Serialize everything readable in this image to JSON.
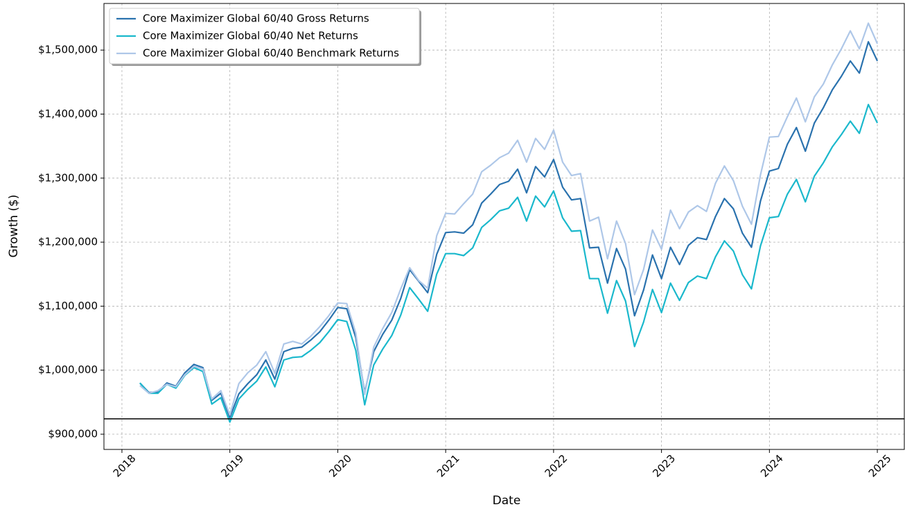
{
  "chart_data": {
    "type": "line",
    "xlabel": "Date",
    "ylabel": "Growth ($)",
    "x": [
      "2018-02",
      "2018-03",
      "2018-04",
      "2018-05",
      "2018-06",
      "2018-07",
      "2018-08",
      "2018-09",
      "2018-10",
      "2018-11",
      "2018-12",
      "2019-01",
      "2019-02",
      "2019-03",
      "2019-04",
      "2019-05",
      "2019-06",
      "2019-07",
      "2019-08",
      "2019-09",
      "2019-10",
      "2019-11",
      "2019-12",
      "2020-01",
      "2020-02",
      "2020-03",
      "2020-04",
      "2020-05",
      "2020-06",
      "2020-07",
      "2020-08",
      "2020-09",
      "2020-10",
      "2020-11",
      "2020-12",
      "2021-01",
      "2021-02",
      "2021-03",
      "2021-04",
      "2021-05",
      "2021-06",
      "2021-07",
      "2021-08",
      "2021-09",
      "2021-10",
      "2021-11",
      "2021-12",
      "2022-01",
      "2022-02",
      "2022-03",
      "2022-04",
      "2022-05",
      "2022-06",
      "2022-07",
      "2022-08",
      "2022-09",
      "2022-10",
      "2022-11",
      "2022-12",
      "2023-01",
      "2023-02",
      "2023-03",
      "2023-04",
      "2023-05",
      "2023-06",
      "2023-07",
      "2023-08",
      "2023-09",
      "2023-10",
      "2023-11",
      "2023-12",
      "2024-01",
      "2024-02",
      "2024-03",
      "2024-04",
      "2024-05",
      "2024-06",
      "2024-07",
      "2024-08",
      "2024-09",
      "2024-10",
      "2024-11",
      "2024-12"
    ],
    "series": [
      {
        "name": "Core Maximizer Global 60/40 Gross Returns",
        "color": "#2a72ae",
        "values": [
          980000,
          965000,
          966000,
          980000,
          975000,
          996000,
          1009000,
          1004000,
          953000,
          964000,
          926000,
          963000,
          979000,
          993000,
          1016000,
          986000,
          1029000,
          1034000,
          1036000,
          1047000,
          1060000,
          1078000,
          1098000,
          1096000,
          1051000,
          965000,
          1029000,
          1056000,
          1078000,
          1112000,
          1157000,
          1139000,
          1121000,
          1181000,
          1215000,
          1216000,
          1214000,
          1227000,
          1261000,
          1275000,
          1290000,
          1295000,
          1314000,
          1277000,
          1318000,
          1302000,
          1329000,
          1286000,
          1266000,
          1268000,
          1191000,
          1192000,
          1136000,
          1190000,
          1158000,
          1085000,
          1125000,
          1180000,
          1143000,
          1192000,
          1165000,
          1195000,
          1207000,
          1204000,
          1240000,
          1268000,
          1252000,
          1214000,
          1192000,
          1264000,
          1311000,
          1315000,
          1353000,
          1379000,
          1342000,
          1386000,
          1410000,
          1438000,
          1459000,
          1483000,
          1464000,
          1513000,
          1483000
        ]
      },
      {
        "name": "Core Maximizer Global 60/40 Net Returns",
        "color": "#1ab8cc",
        "values": [
          980000,
          964000,
          964000,
          978000,
          972000,
          992000,
          1004000,
          998000,
          947000,
          957000,
          919000,
          955000,
          970000,
          983000,
          1005000,
          974000,
          1016000,
          1020000,
          1021000,
          1031000,
          1043000,
          1060000,
          1079000,
          1076000,
          1031000,
          946000,
          1008000,
          1033000,
          1054000,
          1086000,
          1129000,
          1111000,
          1092000,
          1150000,
          1182000,
          1182000,
          1179000,
          1191000,
          1223000,
          1235000,
          1249000,
          1253000,
          1270000,
          1233000,
          1272000,
          1255000,
          1280000,
          1238000,
          1217000,
          1218000,
          1143000,
          1143000,
          1089000,
          1140000,
          1108000,
          1037000,
          1075000,
          1126000,
          1090000,
          1136000,
          1109000,
          1137000,
          1147000,
          1143000,
          1177000,
          1202000,
          1186000,
          1149000,
          1127000,
          1194000,
          1238000,
          1240000,
          1275000,
          1298000,
          1263000,
          1303000,
          1324000,
          1349000,
          1368000,
          1389000,
          1370000,
          1415000,
          1386000
        ]
      },
      {
        "name": "Core Maximizer Global 60/40 Benchmark Returns",
        "color": "#aec7e8",
        "values": [
          976000,
          964000,
          968000,
          978000,
          974000,
          993000,
          1006000,
          1002000,
          955000,
          968000,
          930000,
          979000,
          996000,
          1008000,
          1029000,
          995000,
          1041000,
          1045000,
          1041000,
          1053000,
          1068000,
          1085000,
          1105000,
          1104000,
          1058000,
          962000,
          1036000,
          1065000,
          1090000,
          1127000,
          1160000,
          1140000,
          1128000,
          1210000,
          1245000,
          1244000,
          1260000,
          1275000,
          1310000,
          1320000,
          1332000,
          1339000,
          1359000,
          1325000,
          1362000,
          1345000,
          1375000,
          1325000,
          1304000,
          1307000,
          1233000,
          1239000,
          1174000,
          1233000,
          1198000,
          1118000,
          1157000,
          1219000,
          1189000,
          1250000,
          1221000,
          1247000,
          1257000,
          1248000,
          1292000,
          1319000,
          1296000,
          1256000,
          1228000,
          1305000,
          1364000,
          1365000,
          1396000,
          1425000,
          1388000,
          1427000,
          1447000,
          1477000,
          1502000,
          1530000,
          1502000,
          1542000,
          1510000
        ]
      }
    ],
    "reference_line": 924000,
    "xlim": [
      "2017-10",
      "2025-03"
    ],
    "xticks": [
      "2018",
      "2019",
      "2020",
      "2021",
      "2022",
      "2023",
      "2024",
      "2025"
    ],
    "ylim": [
      876200,
      1572800
    ],
    "yticks": [
      {
        "value": 900000,
        "label": "$900,000"
      },
      {
        "value": 1000000,
        "label": "$1,000,000"
      },
      {
        "value": 1100000,
        "label": "$1,100,000"
      },
      {
        "value": 1200000,
        "label": "$1,200,000"
      },
      {
        "value": 1300000,
        "label": "$1,300,000"
      },
      {
        "value": 1400000,
        "label": "$1,400,000"
      },
      {
        "value": 1500000,
        "label": "$1,500,000"
      }
    ],
    "grid": true,
    "legend": "upper left"
  }
}
